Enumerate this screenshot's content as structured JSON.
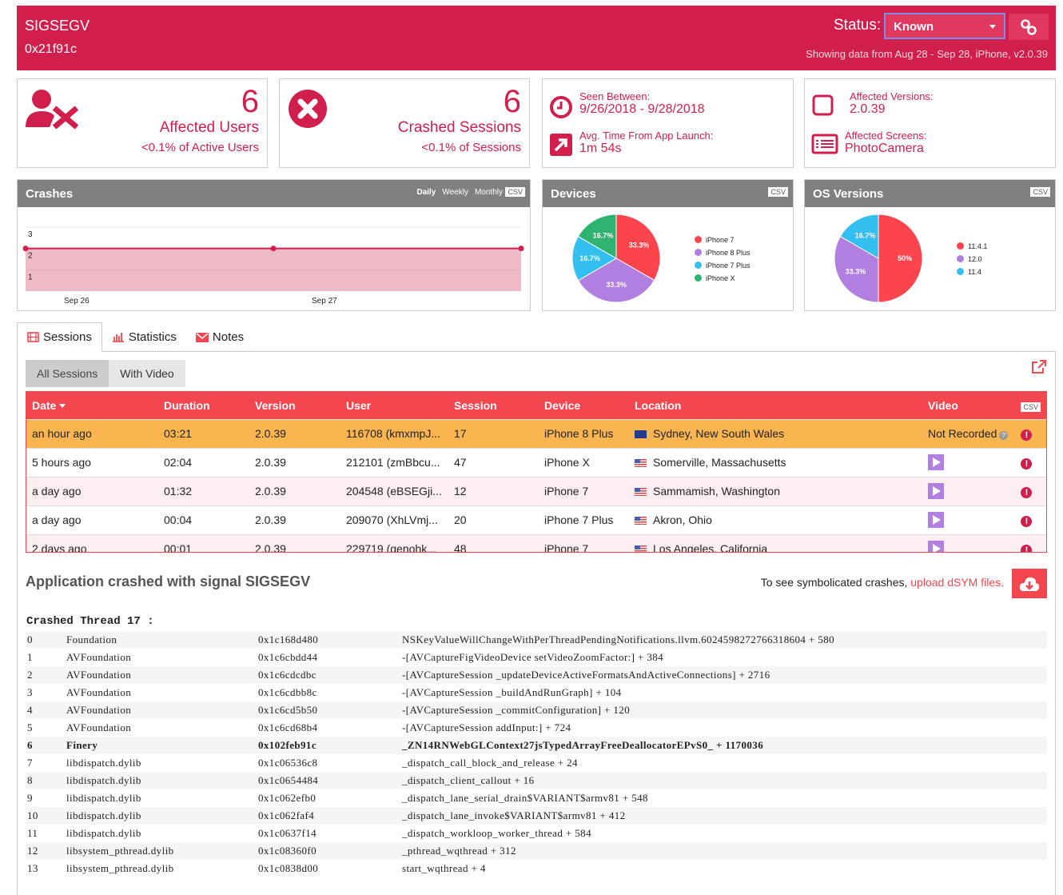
{
  "header": {
    "title": "SIGSEGV",
    "address": "0x21f91c",
    "status_label": "Status:",
    "status_value": "Known",
    "range_text": "Showing data from Aug 28 - Sep 28, iPhone, v2.0.39"
  },
  "cards": {
    "users": {
      "count": "6",
      "label": "Affected Users",
      "sub": "<0.1% of Active Users"
    },
    "sessions": {
      "count": "6",
      "label": "Crashed Sessions",
      "sub": "<0.1% of Sessions"
    },
    "seen": {
      "label": "Seen Between:",
      "value": "9/26/2018 - 9/28/2018"
    },
    "avg": {
      "label": "Avg. Time From App Launch:",
      "value": "1m 54s"
    },
    "versions": {
      "label": "Affected Versions:",
      "value": "2.0.39"
    },
    "screens": {
      "label": "Affected Screens:",
      "value": "PhotoCamera"
    }
  },
  "panels": {
    "crashes": "Crashes",
    "devices": "Devices",
    "os": "OS Versions",
    "csv": "CSV",
    "periods": [
      "Daily",
      "Weekly",
      "Monthly"
    ]
  },
  "chart_data": [
    {
      "type": "area",
      "title": "Crashes",
      "x": [
        "Sep 26",
        "Sep 26.5",
        "Sep 27"
      ],
      "x_ticks": [
        "Sep 26",
        "Sep 27"
      ],
      "values": [
        2,
        2,
        2
      ],
      "y_ticks": [
        "1",
        "2",
        "3"
      ],
      "ylim": [
        0,
        3
      ],
      "color": "#d11f4d"
    },
    {
      "type": "pie",
      "title": "Devices",
      "labels": [
        "iPhone 7",
        "iPhone 8 Plus",
        "iPhone 7 Plus",
        "iPhone X"
      ],
      "values": [
        33.3,
        33.3,
        16.7,
        16.7
      ],
      "value_labels": [
        "33.3%",
        "33.3%",
        "16.7%",
        "16.7%"
      ],
      "colors": [
        "#fc444c",
        "#b07fe0",
        "#33bfef",
        "#2fb371"
      ]
    },
    {
      "type": "pie",
      "title": "OS Versions",
      "labels": [
        "11.4.1",
        "12.0",
        "11.4"
      ],
      "values": [
        50,
        33.3,
        16.7
      ],
      "value_labels": [
        "50%",
        "33.3%",
        "16.7%"
      ],
      "colors": [
        "#fc444c",
        "#b07fe0",
        "#33bfef"
      ]
    }
  ],
  "tabs": [
    "Sessions",
    "Statistics",
    "Notes"
  ],
  "subtabs": [
    "All Sessions",
    "With Video"
  ],
  "table": {
    "columns": [
      "Date",
      "Duration",
      "Version",
      "User",
      "Session",
      "Device",
      "Location",
      "Video"
    ],
    "csv": "CSV",
    "rows": [
      {
        "date": "an hour ago",
        "duration": "03:21",
        "version": "2.0.39",
        "user": "116708 (kmxmpJ...",
        "session": "17",
        "device": "iPhone 8 Plus",
        "flag": "au",
        "location": "Sydney, New South Wales",
        "video": "Not Recorded"
      },
      {
        "date": "5 hours ago",
        "duration": "02:04",
        "version": "2.0.39",
        "user": "212101 (zmBbcu...",
        "session": "47",
        "device": "iPhone X",
        "flag": "us",
        "location": "Somerville, Massachusetts",
        "video": ""
      },
      {
        "date": "a day ago",
        "duration": "01:32",
        "version": "2.0.39",
        "user": "204548 (eBSEGji...",
        "session": "12",
        "device": "iPhone 7",
        "flag": "us",
        "location": "Sammamish, Washington",
        "video": ""
      },
      {
        "date": "a day ago",
        "duration": "00:04",
        "version": "2.0.39",
        "user": "209070 (XhLVmj...",
        "session": "20",
        "device": "iPhone 7 Plus",
        "flag": "us",
        "location": "Akron, Ohio",
        "video": ""
      },
      {
        "date": "2 days ago",
        "duration": "00:01",
        "version": "2.0.39",
        "user": "229719 (genohk...",
        "session": "48",
        "device": "iPhone 7",
        "flag": "us",
        "location": "Los Angeles, California",
        "video": ""
      }
    ]
  },
  "crash": {
    "title": "Application crashed with signal SIGSEGV",
    "dsym_text": "To see symbolicated crashes, ",
    "dsym_link": "upload dSYM files.",
    "thread": "Crashed Thread 17  :",
    "frames": [
      [
        "0",
        "Foundation",
        "0x1c168d480",
        "NSKeyValueWillChangeWithPerThreadPendingNotifications.llvm.6024598272766318604 + 580"
      ],
      [
        "1",
        "AVFoundation",
        "0x1c6cbdd44",
        "-[AVCaptureFigVideoDevice setVideoZoomFactor:] + 384"
      ],
      [
        "2",
        "AVFoundation",
        "0x1c6cdcdbc",
        "-[AVCaptureSession _updateDeviceActiveFormatsAndActiveConnections] + 2716"
      ],
      [
        "3",
        "AVFoundation",
        "0x1c6cdbb8c",
        "-[AVCaptureSession _buildAndRunGraph] + 104"
      ],
      [
        "4",
        "AVFoundation",
        "0x1c6cd5b50",
        "-[AVCaptureSession _commitConfiguration] + 120"
      ],
      [
        "5",
        "AVFoundation",
        "0x1c6cd68b4",
        "-[AVCaptureSession addInput:] + 724"
      ],
      [
        "6",
        "Finery",
        "0x102feb91c",
        "_ZN14RNWebGLContext27jsTypedArrayFreeDeallocatorEPvS0_ + 1170036"
      ],
      [
        "7",
        "libdispatch.dylib",
        "0x1c06536c8",
        "_dispatch_call_block_and_release + 24"
      ],
      [
        "8",
        "libdispatch.dylib",
        "0x1c0654484",
        "_dispatch_client_callout + 16"
      ],
      [
        "9",
        "libdispatch.dylib",
        "0x1c062efb0",
        "_dispatch_lane_serial_drain$VARIANT$armv81 + 548"
      ],
      [
        "10",
        "libdispatch.dylib",
        "0x1c062faf4",
        "_dispatch_lane_invoke$VARIANT$armv81 + 412"
      ],
      [
        "11",
        "libdispatch.dylib",
        "0x1c0637f14",
        "_dispatch_workloop_worker_thread + 584"
      ],
      [
        "12",
        "libsystem_pthread.dylib",
        "0x1c08360f0",
        "_pthread_wqthread + 312"
      ],
      [
        "13",
        "libsystem_pthread.dylib",
        "0x1c0838d00",
        "start_wqthread + 4"
      ]
    ],
    "highlight_frame": "6"
  }
}
